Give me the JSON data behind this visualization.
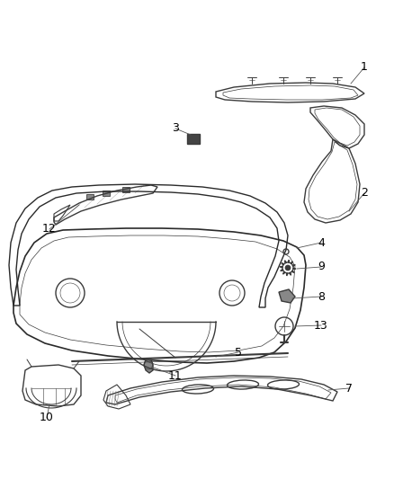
{
  "background_color": "#ffffff",
  "fig_width": 4.38,
  "fig_height": 5.33,
  "dpi": 100,
  "lc": "#3a3a3a",
  "lw": 1.0,
  "tlw": 0.5
}
